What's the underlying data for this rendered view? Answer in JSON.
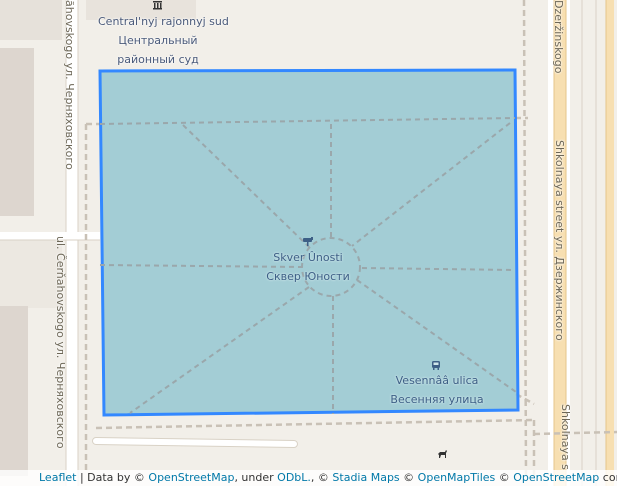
{
  "map": {
    "features": [
      {
        "name_latin": "Central'nyj rajonnyj sud",
        "name_line1": "Центральный",
        "name_line2": "районный суд",
        "icon": "courthouse-icon"
      },
      {
        "name_latin": "Skver Ûnosti",
        "name_local": "Сквер Юности",
        "icon": "viewpoint-icon"
      },
      {
        "name_latin": "Vesennââ ulica",
        "name_local": "Весенняя улица",
        "icon": "bus-stop-icon"
      }
    ],
    "streets": [
      {
        "label": "ul. Čerňahovskogo ул. Черняховского"
      },
      {
        "label": "ăhovskogo ул. Черняховского"
      },
      {
        "label": "Dzeržinskogo"
      },
      {
        "label": "Shkolnaya street ул. Дзержинского"
      },
      {
        "label": "Shkolnaya s"
      }
    ],
    "extra_icons": [
      "dog-park-icon"
    ],
    "polygon": {
      "stroke": "#3388ff",
      "fill": "#8fc4cf"
    }
  },
  "attribution": {
    "leaflet": "Leaflet",
    "sep1": " | Data by © ",
    "osm": "OpenStreetMap",
    "sep2": ", under ",
    "odbl": "ODbL.",
    "sep3": ", © ",
    "stadia": "Stadia Maps",
    "sep4": " © ",
    "omt": "OpenMapTiles",
    "sep5": " © ",
    "osm2": "OpenStreetMap",
    "sep6": " contributors"
  }
}
